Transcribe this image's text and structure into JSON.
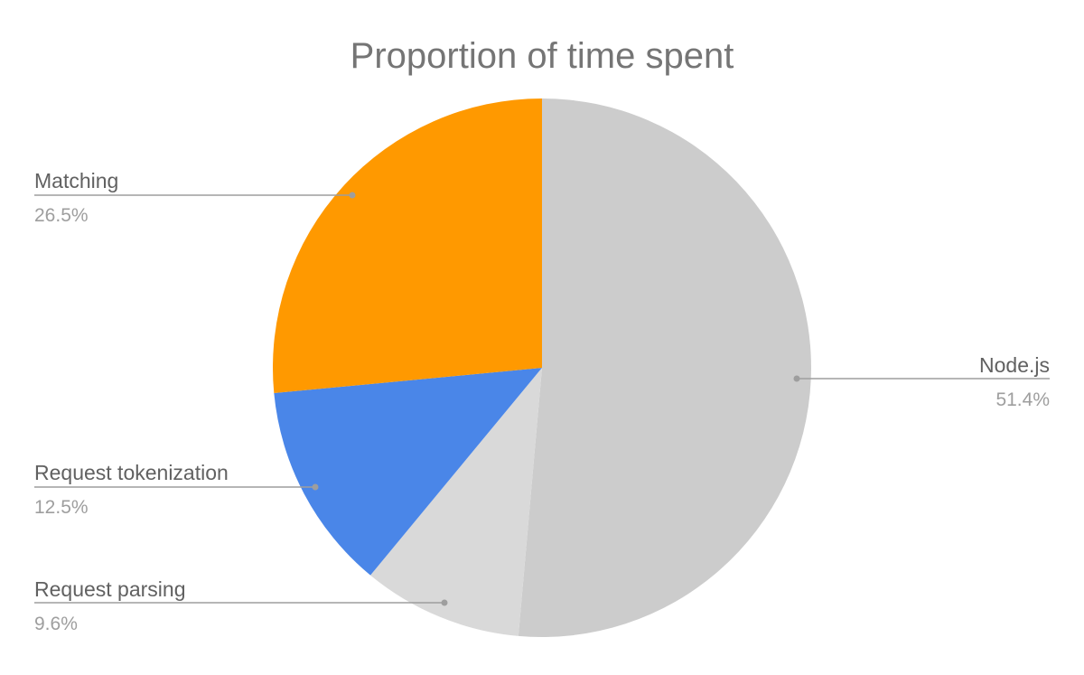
{
  "chart_data": {
    "type": "pie",
    "title": "Proportion of time spent",
    "start_angle_deg": 0,
    "direction": "clockwise",
    "labels": [
      "Node.js",
      "Request parsing",
      "Request tokenization",
      "Matching"
    ],
    "values": [
      51.4,
      9.6,
      12.5,
      26.5
    ],
    "value_labels": [
      "51.4%",
      "9.6%",
      "12.5%",
      "26.5%"
    ],
    "colors": [
      "#cccccc",
      "#d9d9d9",
      "#4a86e8",
      "#ff9900"
    ],
    "legend": "none (leader-line labels)"
  },
  "style": {
    "title_color": "#757575",
    "name_color": "#616161",
    "value_color": "#9e9e9e",
    "leader_color": "#9e9e9e",
    "background": "#ffffff"
  }
}
